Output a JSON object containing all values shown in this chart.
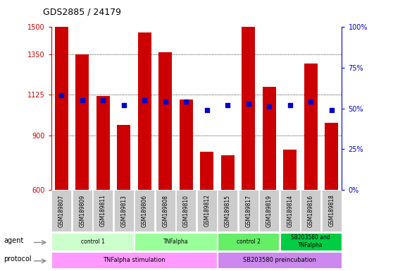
{
  "title": "GDS2885 / 24179",
  "samples": [
    "GSM189807",
    "GSM189809",
    "GSM189811",
    "GSM189813",
    "GSM189806",
    "GSM189808",
    "GSM189810",
    "GSM189812",
    "GSM189815",
    "GSM189817",
    "GSM189819",
    "GSM189814",
    "GSM189816",
    "GSM189818"
  ],
  "counts": [
    1500,
    1350,
    1120,
    960,
    1470,
    1360,
    1100,
    810,
    790,
    1500,
    1170,
    820,
    1300,
    970
  ],
  "percentiles": [
    58,
    55,
    55,
    52,
    55,
    54,
    54,
    49,
    52,
    53,
    51,
    52,
    54,
    49
  ],
  "ylim_left": [
    600,
    1500
  ],
  "ylim_right": [
    0,
    100
  ],
  "yticks_left": [
    600,
    900,
    1125,
    1350,
    1500
  ],
  "yticks_right": [
    0,
    25,
    50,
    75,
    100
  ],
  "bar_color": "#cc0000",
  "dot_color": "#0000cc",
  "agent_groups": [
    {
      "label": "control 1",
      "start": 0,
      "end": 4,
      "color": "#ccffcc"
    },
    {
      "label": "TNFalpha",
      "start": 4,
      "end": 8,
      "color": "#99ff99"
    },
    {
      "label": "control 2",
      "start": 8,
      "end": 11,
      "color": "#66ee66"
    },
    {
      "label": "SB203580 and\nTNFalpha",
      "start": 11,
      "end": 14,
      "color": "#00cc44"
    }
  ],
  "protocol_groups": [
    {
      "label": "TNFalpha stimulation",
      "start": 0,
      "end": 8,
      "color": "#ff99ff"
    },
    {
      "label": "SB203580 preincubation",
      "start": 8,
      "end": 14,
      "color": "#cc88ee"
    }
  ],
  "left_axis_color": "#cc0000",
  "right_axis_color": "#0000cc",
  "grid_color": "#000000",
  "sample_bg_color": "#cccccc",
  "legend_count_color": "#cc0000",
  "legend_pct_color": "#0000cc"
}
